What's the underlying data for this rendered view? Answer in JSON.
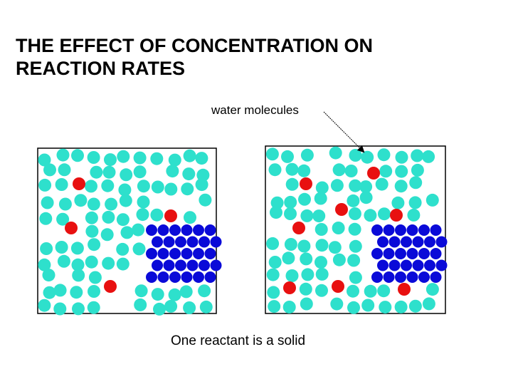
{
  "header": {
    "title_lines": [
      "THE EFFECT OF CONCENTRATION ON",
      "REACTION RATES"
    ]
  },
  "labels": {
    "water": "water molecules",
    "caption": "One reactant is a solid"
  }
}
